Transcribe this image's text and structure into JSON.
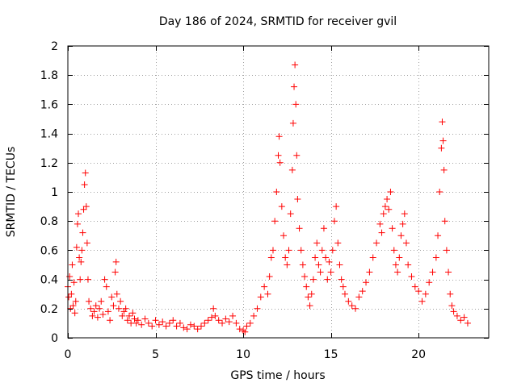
{
  "chart_data": {
    "type": "scatter",
    "title": "Day 186 of 2024, SRMTID for receiver gvil",
    "xlabel": "GPS time / hours",
    "ylabel": "SRMTID / TECUs",
    "xlim": [
      0,
      24
    ],
    "ylim": [
      0,
      2
    ],
    "xticks": [
      0,
      5,
      10,
      15,
      20
    ],
    "xtick_labels": [
      "0",
      "5",
      "10",
      "15",
      "20"
    ],
    "yticks": [
      0,
      0.2,
      0.4,
      0.6,
      0.8,
      1,
      1.2,
      1.4,
      1.6,
      1.8,
      2
    ],
    "ytick_labels": [
      "0",
      "0.2",
      "0.4",
      "0.6",
      "0.8",
      "1",
      "1.2",
      "1.4",
      "1.6",
      "1.8",
      "2"
    ],
    "grid": true,
    "marker": "+",
    "series": [
      {
        "name": "SRMTID",
        "color": "#ff0000",
        "points": [
          [
            0.0,
            0.35
          ],
          [
            0.05,
            0.28
          ],
          [
            0.1,
            0.42
          ],
          [
            0.15,
            0.2
          ],
          [
            0.2,
            0.3
          ],
          [
            0.25,
            0.5
          ],
          [
            0.3,
            0.22
          ],
          [
            0.35,
            0.38
          ],
          [
            0.4,
            0.17
          ],
          [
            0.45,
            0.25
          ],
          [
            0.5,
            0.62
          ],
          [
            0.55,
            0.78
          ],
          [
            0.6,
            0.85
          ],
          [
            0.65,
            0.55
          ],
          [
            0.7,
            0.4
          ],
          [
            0.75,
            0.52
          ],
          [
            0.8,
            0.6
          ],
          [
            0.85,
            0.72
          ],
          [
            0.9,
            0.88
          ],
          [
            0.95,
            1.05
          ],
          [
            1.0,
            1.13
          ],
          [
            1.05,
            0.9
          ],
          [
            1.1,
            0.65
          ],
          [
            1.15,
            0.4
          ],
          [
            1.2,
            0.25
          ],
          [
            1.3,
            0.2
          ],
          [
            1.4,
            0.15
          ],
          [
            1.5,
            0.18
          ],
          [
            1.6,
            0.22
          ],
          [
            1.7,
            0.14
          ],
          [
            1.8,
            0.2
          ],
          [
            1.9,
            0.25
          ],
          [
            2.0,
            0.16
          ],
          [
            2.1,
            0.4
          ],
          [
            2.2,
            0.35
          ],
          [
            2.3,
            0.18
          ],
          [
            2.4,
            0.12
          ],
          [
            2.5,
            0.28
          ],
          [
            2.6,
            0.22
          ],
          [
            2.7,
            0.45
          ],
          [
            2.75,
            0.52
          ],
          [
            2.8,
            0.3
          ],
          [
            2.9,
            0.2
          ],
          [
            3.0,
            0.25
          ],
          [
            3.1,
            0.15
          ],
          [
            3.2,
            0.18
          ],
          [
            3.3,
            0.2
          ],
          [
            3.4,
            0.12
          ],
          [
            3.5,
            0.15
          ],
          [
            3.6,
            0.1
          ],
          [
            3.7,
            0.17
          ],
          [
            3.8,
            0.13
          ],
          [
            3.9,
            0.1
          ],
          [
            4.0,
            0.12
          ],
          [
            4.2,
            0.09
          ],
          [
            4.4,
            0.13
          ],
          [
            4.6,
            0.1
          ],
          [
            4.8,
            0.08
          ],
          [
            5.0,
            0.12
          ],
          [
            5.2,
            0.09
          ],
          [
            5.4,
            0.11
          ],
          [
            5.6,
            0.08
          ],
          [
            5.8,
            0.1
          ],
          [
            6.0,
            0.12
          ],
          [
            6.2,
            0.08
          ],
          [
            6.4,
            0.1
          ],
          [
            6.6,
            0.07
          ],
          [
            6.8,
            0.06
          ],
          [
            7.0,
            0.09
          ],
          [
            7.2,
            0.08
          ],
          [
            7.4,
            0.06
          ],
          [
            7.6,
            0.08
          ],
          [
            7.8,
            0.1
          ],
          [
            8.0,
            0.12
          ],
          [
            8.2,
            0.14
          ],
          [
            8.3,
            0.2
          ],
          [
            8.4,
            0.15
          ],
          [
            8.6,
            0.12
          ],
          [
            8.8,
            0.1
          ],
          [
            9.0,
            0.13
          ],
          [
            9.2,
            0.11
          ],
          [
            9.4,
            0.15
          ],
          [
            9.6,
            0.1
          ],
          [
            9.8,
            0.06
          ],
          [
            10.0,
            0.05
          ],
          [
            10.1,
            0.04
          ],
          [
            10.2,
            0.08
          ],
          [
            10.4,
            0.1
          ],
          [
            10.6,
            0.15
          ],
          [
            10.8,
            0.2
          ],
          [
            11.0,
            0.28
          ],
          [
            11.2,
            0.35
          ],
          [
            11.4,
            0.3
          ],
          [
            11.5,
            0.42
          ],
          [
            11.6,
            0.55
          ],
          [
            11.7,
            0.6
          ],
          [
            11.8,
            0.8
          ],
          [
            11.9,
            1.0
          ],
          [
            12.0,
            1.25
          ],
          [
            12.05,
            1.38
          ],
          [
            12.1,
            1.2
          ],
          [
            12.2,
            0.9
          ],
          [
            12.3,
            0.7
          ],
          [
            12.4,
            0.55
          ],
          [
            12.5,
            0.5
          ],
          [
            12.6,
            0.6
          ],
          [
            12.7,
            0.85
          ],
          [
            12.8,
            1.15
          ],
          [
            12.85,
            1.47
          ],
          [
            12.9,
            1.72
          ],
          [
            12.95,
            1.87
          ],
          [
            13.0,
            1.6
          ],
          [
            13.05,
            1.25
          ],
          [
            13.1,
            0.95
          ],
          [
            13.2,
            0.75
          ],
          [
            13.3,
            0.6
          ],
          [
            13.4,
            0.5
          ],
          [
            13.5,
            0.42
          ],
          [
            13.6,
            0.35
          ],
          [
            13.7,
            0.28
          ],
          [
            13.8,
            0.22
          ],
          [
            13.9,
            0.3
          ],
          [
            14.0,
            0.4
          ],
          [
            14.1,
            0.55
          ],
          [
            14.2,
            0.65
          ],
          [
            14.3,
            0.5
          ],
          [
            14.4,
            0.45
          ],
          [
            14.5,
            0.6
          ],
          [
            14.6,
            0.75
          ],
          [
            14.7,
            0.55
          ],
          [
            14.8,
            0.4
          ],
          [
            14.9,
            0.52
          ],
          [
            15.0,
            0.45
          ],
          [
            15.1,
            0.6
          ],
          [
            15.2,
            0.8
          ],
          [
            15.3,
            0.9
          ],
          [
            15.4,
            0.65
          ],
          [
            15.5,
            0.5
          ],
          [
            15.6,
            0.4
          ],
          [
            15.7,
            0.35
          ],
          [
            15.8,
            0.3
          ],
          [
            16.0,
            0.25
          ],
          [
            16.2,
            0.22
          ],
          [
            16.4,
            0.2
          ],
          [
            16.6,
            0.28
          ],
          [
            16.8,
            0.32
          ],
          [
            17.0,
            0.38
          ],
          [
            17.2,
            0.45
          ],
          [
            17.4,
            0.55
          ],
          [
            17.6,
            0.65
          ],
          [
            17.8,
            0.78
          ],
          [
            17.9,
            0.72
          ],
          [
            18.0,
            0.85
          ],
          [
            18.1,
            0.9
          ],
          [
            18.2,
            0.95
          ],
          [
            18.3,
            0.88
          ],
          [
            18.4,
            1.0
          ],
          [
            18.5,
            0.75
          ],
          [
            18.6,
            0.6
          ],
          [
            18.7,
            0.5
          ],
          [
            18.8,
            0.45
          ],
          [
            18.9,
            0.55
          ],
          [
            19.0,
            0.7
          ],
          [
            19.1,
            0.78
          ],
          [
            19.2,
            0.85
          ],
          [
            19.3,
            0.65
          ],
          [
            19.4,
            0.5
          ],
          [
            19.6,
            0.42
          ],
          [
            19.8,
            0.35
          ],
          [
            20.0,
            0.32
          ],
          [
            20.2,
            0.25
          ],
          [
            20.4,
            0.3
          ],
          [
            20.6,
            0.38
          ],
          [
            20.8,
            0.45
          ],
          [
            21.0,
            0.55
          ],
          [
            21.1,
            0.7
          ],
          [
            21.2,
            1.0
          ],
          [
            21.3,
            1.3
          ],
          [
            21.35,
            1.48
          ],
          [
            21.4,
            1.35
          ],
          [
            21.45,
            1.15
          ],
          [
            21.5,
            0.8
          ],
          [
            21.6,
            0.6
          ],
          [
            21.7,
            0.45
          ],
          [
            21.8,
            0.3
          ],
          [
            21.9,
            0.22
          ],
          [
            22.0,
            0.18
          ],
          [
            22.2,
            0.15
          ],
          [
            22.4,
            0.12
          ],
          [
            22.6,
            0.14
          ],
          [
            22.8,
            0.1
          ]
        ]
      }
    ]
  }
}
